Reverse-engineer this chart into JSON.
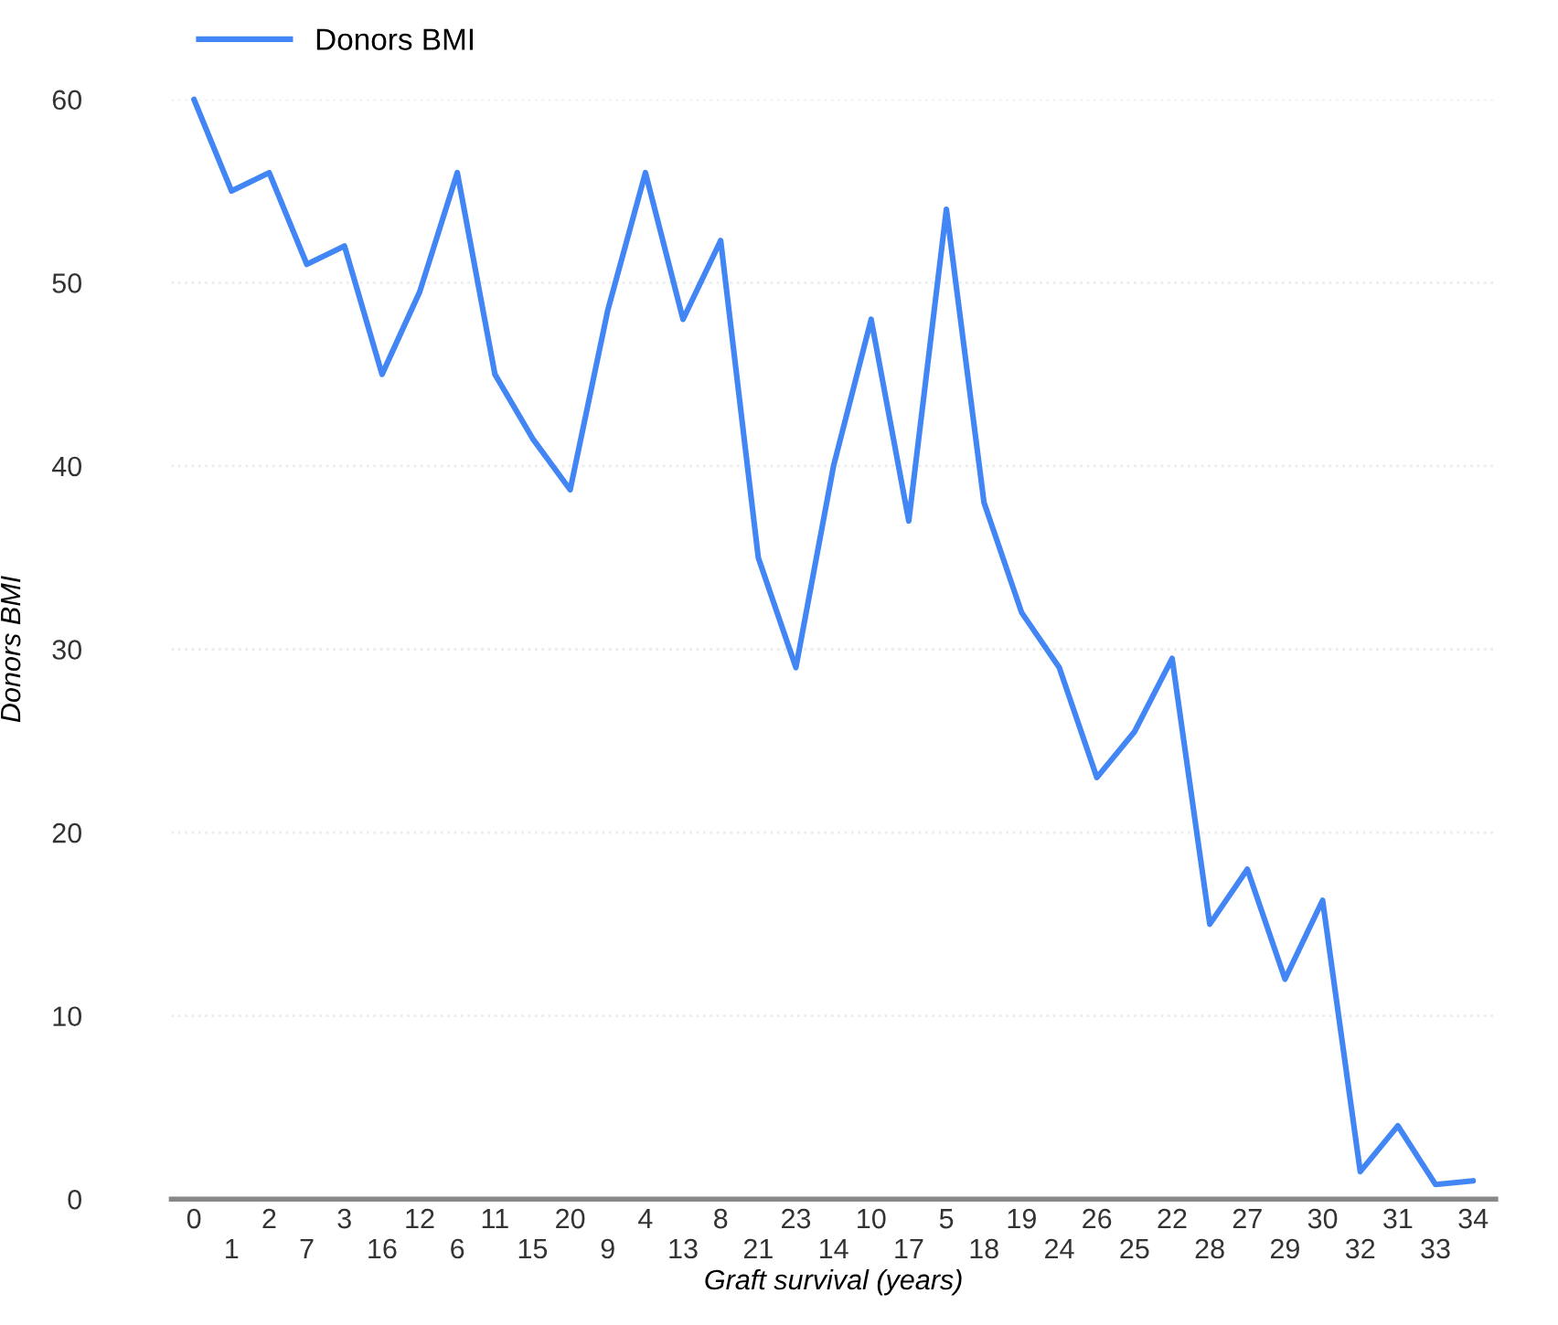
{
  "chart_data": {
    "type": "line",
    "xlabel": "Graft survival (years)",
    "ylabel": "Donors BMI",
    "categories": [
      "0",
      "1",
      "2",
      "7",
      "3",
      "16",
      "12",
      "6",
      "11",
      "15",
      "20",
      "9",
      "4",
      "13",
      "8",
      "21",
      "23",
      "14",
      "10",
      "17",
      "5",
      "18",
      "19",
      "24",
      "26",
      "25",
      "22",
      "28",
      "27",
      "29",
      "30",
      "32",
      "31",
      "33",
      "34"
    ],
    "series": [
      {
        "name": "Donors BMI",
        "color": "#4285f4",
        "values": [
          60,
          55,
          56,
          51,
          52,
          45,
          49.5,
          56,
          45,
          41.5,
          38.7,
          48.5,
          56,
          48,
          52.3,
          35,
          29,
          40,
          48,
          37,
          54,
          38,
          32,
          29,
          23,
          25.5,
          29.5,
          15,
          18,
          12,
          16.3,
          1.5,
          4,
          0.8,
          1
        ]
      }
    ],
    "ylim": [
      0,
      60
    ],
    "yticks": [
      0,
      10,
      20,
      30,
      40,
      50,
      60
    ],
    "grid": "y",
    "legend": "top left"
  }
}
